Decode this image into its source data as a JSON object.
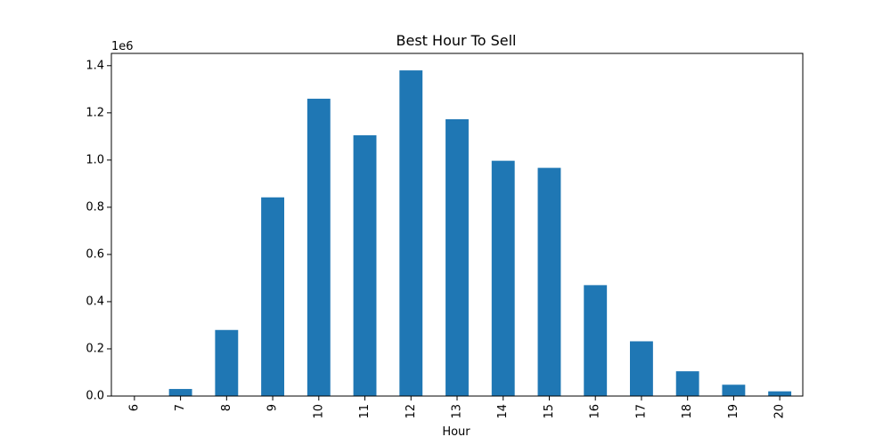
{
  "chart_data": {
    "type": "bar",
    "title": "Best Hour To Sell",
    "xlabel": "Hour",
    "ylabel": "",
    "y_scale_label": "1e6",
    "categories": [
      "6",
      "7",
      "8",
      "9",
      "10",
      "11",
      "12",
      "13",
      "14",
      "15",
      "16",
      "17",
      "18",
      "19",
      "20"
    ],
    "values": [
      0,
      0.03,
      0.28,
      0.842,
      1.26,
      1.105,
      1.38,
      1.173,
      0.997,
      0.967,
      0.47,
      0.232,
      0.105,
      0.048,
      0.02
    ],
    "ylim": [
      0,
      1.452
    ],
    "yticks": [
      0.0,
      0.2,
      0.4,
      0.6,
      0.8,
      1.0,
      1.2,
      1.4
    ],
    "ytick_labels": [
      "0.0",
      "0.2",
      "0.4",
      "0.6",
      "0.8",
      "1.0",
      "1.2",
      "1.4"
    ],
    "grid": false,
    "bar_color": "#1f77b4"
  }
}
